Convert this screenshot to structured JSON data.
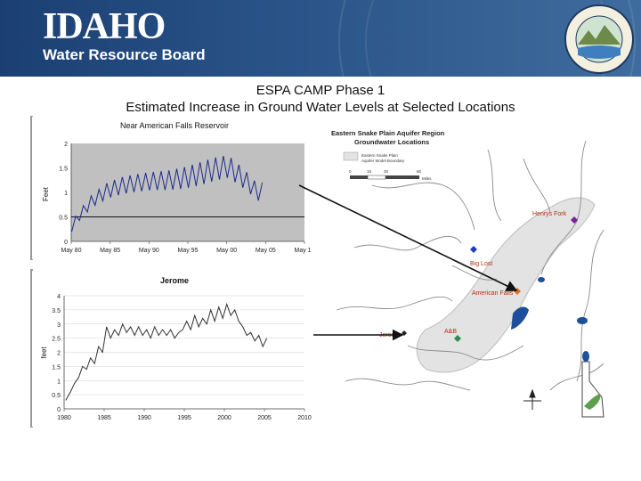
{
  "header": {
    "logo_title": "IDAHO",
    "logo_subtitle": "Water Resource Board",
    "seal_text": "IDAHO WATER RESOURCE BOARD",
    "background_text": "GREAT SEAL · ESTO PERPETUA"
  },
  "slide": {
    "title": "ESPA CAMP Phase 1",
    "subtitle": "Estimated Increase in Ground Water Levels at Selected Locations"
  },
  "chart_data": [
    {
      "type": "line",
      "title": "Near American Falls Reservoir",
      "xlabel": "",
      "ylabel": "Feet",
      "x_ticks": [
        "May 80",
        "May 85",
        "May 90",
        "May 95",
        "May 00",
        "May 05",
        "May 10"
      ],
      "y_ticks": [
        "0",
        "0.5",
        "1",
        "1.5",
        "2"
      ],
      "xlim": [
        1980.33,
        2010.33
      ],
      "ylim": [
        0,
        2
      ],
      "reference_line": 0.5,
      "grid": false,
      "plot_bg": "#c0c0c0",
      "line_color": "#1a2a8a",
      "series": [
        {
          "envelope": {
            "x": [
              1980.4,
              1981.5,
              1983,
              1985,
              1987,
              1989,
              1991,
              1993,
              1995,
              1997,
              1999,
              2000.5,
              2002,
              2003.5,
              2004.5,
              2005.0
            ],
            "low": [
              0.2,
              0.45,
              0.7,
              0.88,
              0.97,
              1.02,
              1.05,
              1.05,
              1.08,
              1.15,
              1.25,
              1.3,
              1.15,
              0.95,
              0.82,
              0.88
            ],
            "high": [
              0.4,
              0.65,
              0.95,
              1.2,
              1.32,
              1.38,
              1.42,
              1.45,
              1.52,
              1.62,
              1.72,
              1.76,
              1.55,
              1.32,
              1.12,
              1.22
            ]
          },
          "cycle_years": 1.0
        }
      ]
    },
    {
      "type": "line",
      "title": "Jerome",
      "xlabel": "",
      "ylabel": "feet",
      "x_ticks": [
        "1980",
        "1985",
        "1990",
        "1995",
        "2000",
        "2005",
        "2010"
      ],
      "y_ticks": [
        "0",
        "0.5",
        "1",
        "1.5",
        "2",
        "2.5",
        "3",
        "3.5",
        "4"
      ],
      "xlim": [
        1980,
        2010
      ],
      "ylim": [
        0,
        4
      ],
      "grid": true,
      "plot_bg": "#ffffff",
      "line_color": "#333333",
      "series": [
        {
          "x": [
            1980.2,
            1980.8,
            1981.3,
            1981.8,
            1982.3,
            1982.8,
            1983.3,
            1983.8,
            1984.3,
            1984.8,
            1985.3,
            1985.8,
            1986.3,
            1986.8,
            1987.3,
            1987.8,
            1988.3,
            1988.8,
            1989.3,
            1989.8,
            1990.3,
            1990.8,
            1991.3,
            1991.8,
            1992.3,
            1992.8,
            1993.3,
            1993.8,
            1994.3,
            1994.8,
            1995.3,
            1995.8,
            1996.3,
            1996.8,
            1997.3,
            1997.8,
            1998.3,
            1998.8,
            1999.3,
            1999.8,
            2000.3,
            2000.8,
            2001.3,
            2001.8,
            2002.3,
            2002.8,
            2003.3,
            2003.8,
            2004.3,
            2004.8,
            2005.3
          ],
          "y": [
            0.3,
            0.6,
            0.9,
            1.1,
            1.5,
            1.4,
            1.8,
            1.6,
            2.2,
            2.0,
            2.9,
            2.5,
            2.8,
            2.6,
            3.0,
            2.7,
            2.9,
            2.6,
            2.9,
            2.6,
            2.8,
            2.5,
            2.9,
            2.6,
            2.8,
            2.6,
            2.8,
            2.5,
            2.7,
            2.8,
            3.1,
            2.8,
            3.3,
            2.9,
            3.2,
            3.0,
            3.5,
            3.1,
            3.6,
            3.2,
            3.7,
            3.3,
            3.5,
            3.1,
            2.9,
            2.6,
            2.7,
            2.4,
            2.6,
            2.2,
            2.5
          ]
        }
      ]
    }
  ],
  "map": {
    "title_line1": "Eastern Snake Plain Aquifer Region",
    "title_line2": "Groundwater Locations",
    "legend_label1": "Eastern Snake Plain",
    "legend_label2": "Aquifer Model Boundary",
    "scale_ticks": [
      "0",
      "15",
      "30",
      "60"
    ],
    "scale_unit": "Miles",
    "locations": [
      {
        "name": "Henrys Fork",
        "color": "#7b1fa2"
      },
      {
        "name": "Big Lost",
        "color": "#1e3cc8"
      },
      {
        "name": "American Falls",
        "color": "#e07020"
      },
      {
        "name": "A&B",
        "color": "#2e8b57"
      },
      {
        "name": "Jerome",
        "color": "#222222"
      }
    ],
    "label_color": "#b03010"
  }
}
